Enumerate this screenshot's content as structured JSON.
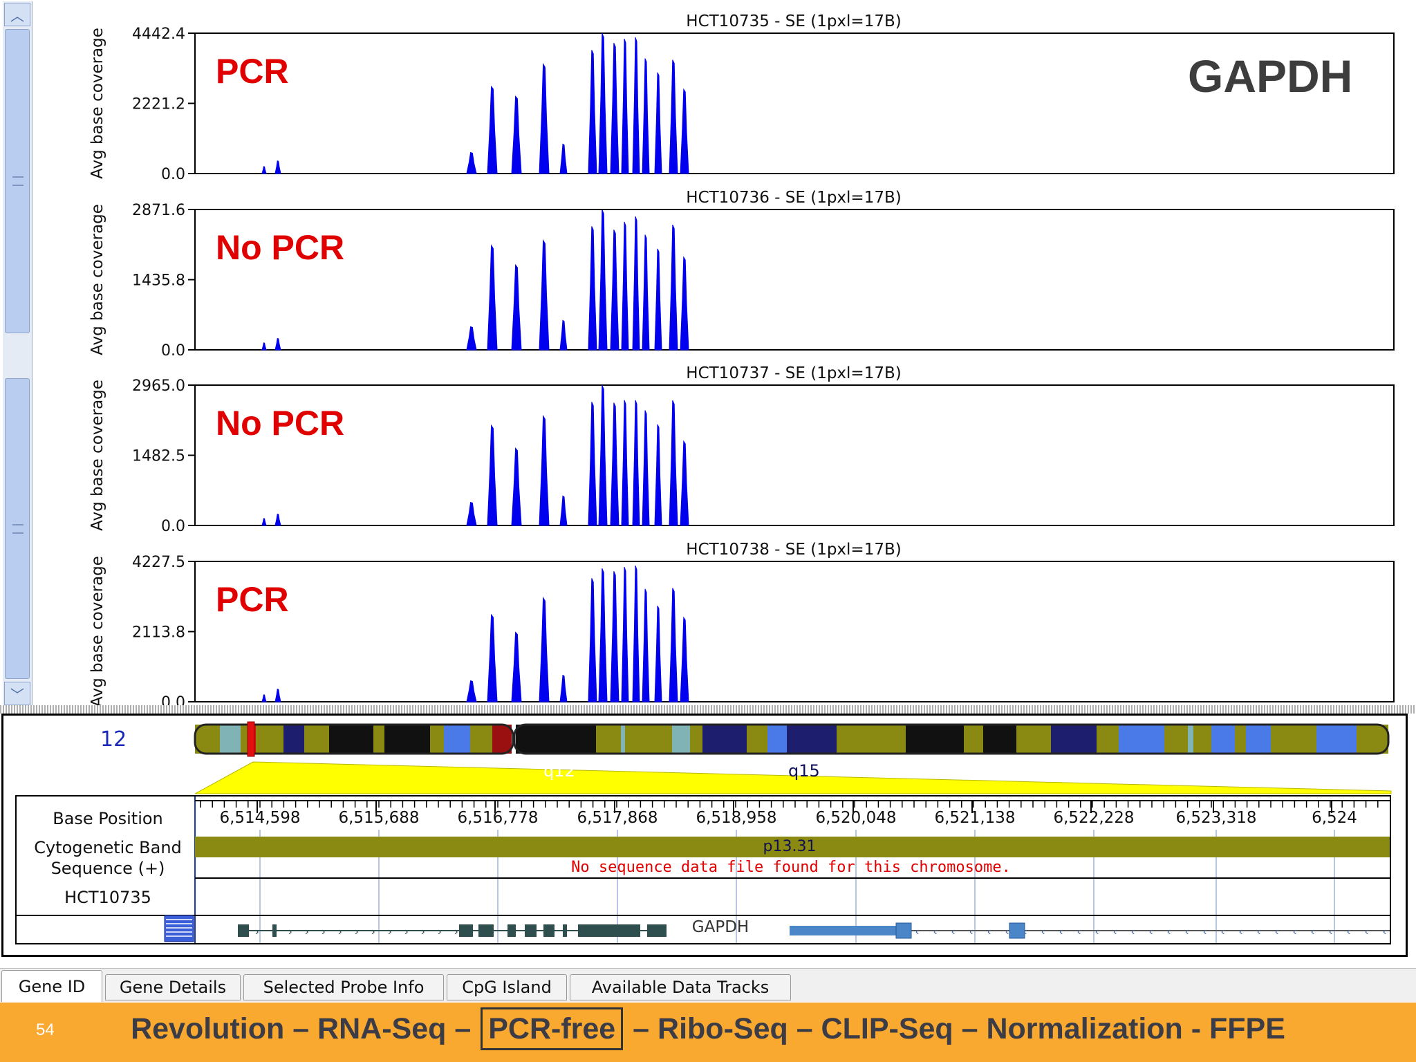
{
  "tracks": [
    {
      "title": "HCT10735 - SE  (1pxl=17B)",
      "ylabel": "Avg base coverage",
      "ticks": [
        "4442.4",
        "2221.2",
        "0.0"
      ],
      "tag": "PCR",
      "max": 4442.4
    },
    {
      "title": "HCT10736 - SE  (1pxl=17B)",
      "ylabel": "Avg base coverage",
      "ticks": [
        "2871.6",
        "1435.8",
        "0.0"
      ],
      "tag": "No PCR",
      "max": 2871.6
    },
    {
      "title": "HCT10737 - SE  (1pxl=17B)",
      "ylabel": "Avg base coverage",
      "ticks": [
        "2965.0",
        "1482.5",
        "0.0"
      ],
      "tag": "No PCR",
      "max": 2965.0
    },
    {
      "title": "HCT10738 - SE  (1pxl=17B)",
      "ylabel": "Avg base coverage",
      "ticks": [
        "4227.5",
        "2113.8",
        "0.0"
      ],
      "tag": "PCR",
      "max": 4227.5
    }
  ],
  "gene_title": "GAPDH",
  "chromosome": {
    "number": "12",
    "bands": [
      "q12",
      "q15"
    ],
    "highlight_color": "#e01010",
    "body_color": "#8a8a12"
  },
  "ruler": {
    "rows": [
      "Base Position",
      "Cytogenetic Band",
      "Sequence (+)",
      "HCT10735"
    ],
    "positions": [
      "6,514,598",
      "6,515,688",
      "6,516,778",
      "6,517,868",
      "6,518,958",
      "6,520,048",
      "6,521,138",
      "6,522,228",
      "6,523,318",
      "6,524"
    ],
    "cyto_band": "p13.31",
    "sequence_msg": "No sequence data file found for this chromosome.",
    "gene_label": "GAPDH"
  },
  "tabs": [
    "Gene ID",
    "Gene Details",
    "Selected Probe Info",
    "CpG Island",
    "Available Data Tracks"
  ],
  "footer": {
    "slide_number": "54",
    "parts": [
      "Revolution – RNA-Seq –",
      "PCR-free",
      "– Ribo-Seq – CLIP-Seq – Normalization - FFPE"
    ]
  },
  "colors": {
    "coverage": "#0000ee",
    "tag": "#e00000",
    "gene_title": "#3d3d3d",
    "footer_bg": "#f9a830"
  }
}
